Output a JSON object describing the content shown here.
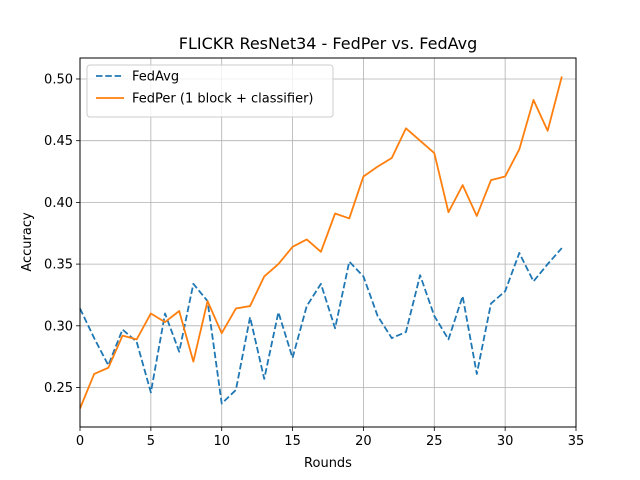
{
  "chart_data": {
    "type": "line",
    "title": "FLICKR ResNet34 - FedPer vs. FedAvg",
    "xlabel": "Rounds",
    "ylabel": "Accuracy",
    "xlim": [
      0,
      35
    ],
    "ylim": [
      0.218,
      0.517
    ],
    "xticks": [
      0,
      5,
      10,
      15,
      20,
      25,
      30,
      35
    ],
    "yticks": [
      0.25,
      0.3,
      0.35,
      0.4,
      0.45,
      0.5
    ],
    "grid": true,
    "legend_position": "top-left",
    "x": [
      0,
      1,
      2,
      3,
      4,
      5,
      6,
      7,
      8,
      9,
      10,
      11,
      12,
      13,
      14,
      15,
      16,
      17,
      18,
      19,
      20,
      21,
      22,
      23,
      24,
      25,
      26,
      27,
      28,
      29,
      30,
      31,
      32,
      33,
      34
    ],
    "series": [
      {
        "name": "FedAvg",
        "color": "#1f77b4",
        "style": "dashed",
        "values": [
          0.314,
          0.29,
          0.268,
          0.297,
          0.287,
          0.246,
          0.31,
          0.279,
          0.334,
          0.32,
          0.237,
          0.248,
          0.307,
          0.257,
          0.311,
          0.274,
          0.316,
          0.334,
          0.298,
          0.352,
          0.34,
          0.308,
          0.29,
          0.295,
          0.341,
          0.308,
          0.289,
          0.324,
          0.261,
          0.318,
          0.328,
          0.359,
          0.336,
          0.35,
          0.363
        ]
      },
      {
        "name": "FedPer (1 block + classifier)",
        "color": "#ff7f0e",
        "style": "solid",
        "values": [
          0.233,
          0.261,
          0.266,
          0.292,
          0.289,
          0.31,
          0.303,
          0.312,
          0.271,
          0.32,
          0.294,
          0.314,
          0.316,
          0.34,
          0.35,
          0.364,
          0.37,
          0.36,
          0.391,
          0.387,
          0.421,
          0.429,
          0.436,
          0.46,
          0.45,
          0.44,
          0.392,
          0.414,
          0.389,
          0.418,
          0.421,
          0.443,
          0.483,
          0.458,
          0.502
        ]
      }
    ]
  }
}
